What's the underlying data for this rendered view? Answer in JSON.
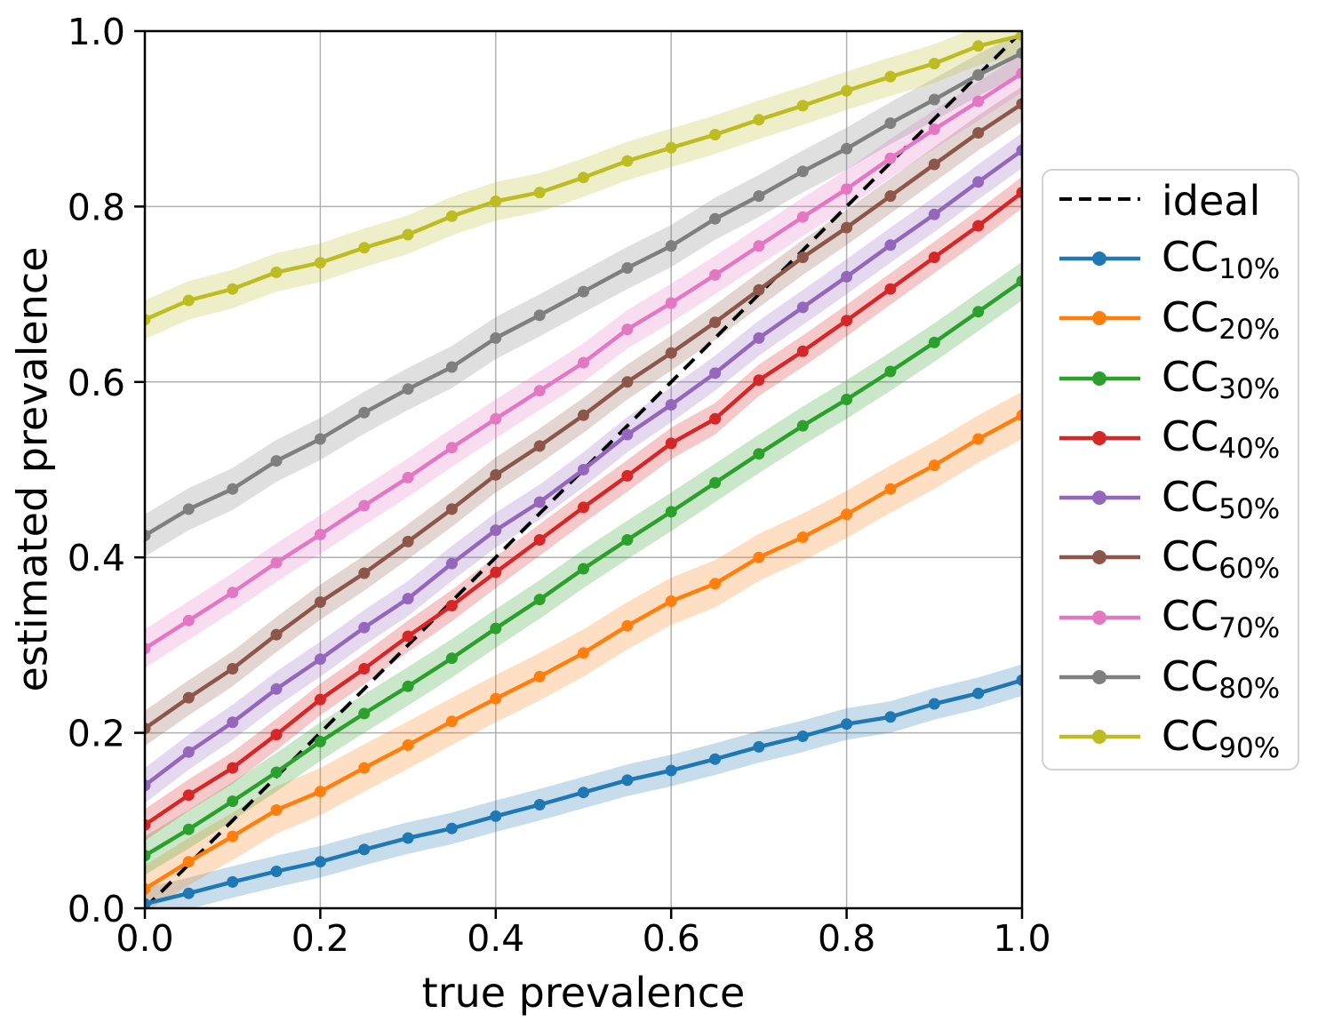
{
  "chart_data": {
    "type": "line",
    "title": "",
    "xlabel": "true prevalence",
    "ylabel": "estimated prevalence",
    "xlim": [
      0.0,
      1.0
    ],
    "ylim": [
      0.0,
      1.0
    ],
    "xticks": [
      "0.0",
      "0.2",
      "0.4",
      "0.6",
      "0.8",
      "1.0"
    ],
    "yticks": [
      "0.0",
      "0.2",
      "0.4",
      "0.6",
      "0.8",
      "1.0"
    ],
    "grid": true,
    "legend_position": "outside-right",
    "x": [
      0.0,
      0.05,
      0.1,
      0.15,
      0.2,
      0.25,
      0.3,
      0.35,
      0.4,
      0.45,
      0.5,
      0.55,
      0.6,
      0.65,
      0.7,
      0.75,
      0.8,
      0.85,
      0.9,
      0.95,
      1.0
    ],
    "ideal": {
      "label": "ideal",
      "x": [
        0.0,
        1.0
      ],
      "y": [
        0.0,
        1.0
      ],
      "color": "#000000",
      "linestyle": "dashed"
    },
    "series": [
      {
        "name": "CC",
        "subscript": "10%",
        "color": "#1f77b4",
        "band_halfwidth": 0.018,
        "values": [
          0.005,
          0.017,
          0.03,
          0.042,
          0.053,
          0.067,
          0.08,
          0.091,
          0.105,
          0.118,
          0.132,
          0.146,
          0.157,
          0.17,
          0.184,
          0.196,
          0.21,
          0.218,
          0.233,
          0.245,
          0.26
        ]
      },
      {
        "name": "CC",
        "subscript": "20%",
        "color": "#ff7f0e",
        "band_halfwidth": 0.027,
        "values": [
          0.022,
          0.053,
          0.082,
          0.112,
          0.133,
          0.16,
          0.186,
          0.213,
          0.239,
          0.264,
          0.291,
          0.322,
          0.35,
          0.37,
          0.4,
          0.423,
          0.449,
          0.478,
          0.505,
          0.535,
          0.562
        ]
      },
      {
        "name": "CC",
        "subscript": "30%",
        "color": "#2ca02c",
        "band_halfwidth": 0.022,
        "values": [
          0.06,
          0.09,
          0.122,
          0.155,
          0.19,
          0.222,
          0.253,
          0.285,
          0.319,
          0.352,
          0.387,
          0.42,
          0.452,
          0.485,
          0.518,
          0.55,
          0.58,
          0.612,
          0.645,
          0.68,
          0.715
        ]
      },
      {
        "name": "CC",
        "subscript": "40%",
        "color": "#d62728",
        "band_halfwidth": 0.018,
        "values": [
          0.095,
          0.129,
          0.16,
          0.198,
          0.238,
          0.273,
          0.31,
          0.345,
          0.383,
          0.42,
          0.457,
          0.493,
          0.53,
          0.558,
          0.602,
          0.635,
          0.67,
          0.706,
          0.742,
          0.778,
          0.816
        ]
      },
      {
        "name": "CC",
        "subscript": "50%",
        "color": "#9467bd",
        "band_halfwidth": 0.02,
        "values": [
          0.14,
          0.178,
          0.212,
          0.25,
          0.284,
          0.32,
          0.353,
          0.393,
          0.431,
          0.463,
          0.5,
          0.54,
          0.574,
          0.61,
          0.65,
          0.685,
          0.72,
          0.756,
          0.791,
          0.828,
          0.864
        ]
      },
      {
        "name": "CC",
        "subscript": "60%",
        "color": "#8c564b",
        "band_halfwidth": 0.02,
        "values": [
          0.205,
          0.24,
          0.273,
          0.312,
          0.349,
          0.382,
          0.418,
          0.455,
          0.494,
          0.527,
          0.562,
          0.6,
          0.633,
          0.668,
          0.705,
          0.742,
          0.776,
          0.812,
          0.848,
          0.884,
          0.917
        ]
      },
      {
        "name": "CC",
        "subscript": "70%",
        "color": "#e377c2",
        "band_halfwidth": 0.022,
        "values": [
          0.296,
          0.328,
          0.36,
          0.394,
          0.426,
          0.459,
          0.491,
          0.525,
          0.558,
          0.59,
          0.622,
          0.66,
          0.69,
          0.722,
          0.755,
          0.788,
          0.82,
          0.855,
          0.888,
          0.92,
          0.952
        ]
      },
      {
        "name": "CC",
        "subscript": "80%",
        "color": "#7f7f7f",
        "band_halfwidth": 0.024,
        "values": [
          0.425,
          0.455,
          0.478,
          0.51,
          0.535,
          0.565,
          0.592,
          0.617,
          0.65,
          0.676,
          0.703,
          0.73,
          0.755,
          0.786,
          0.812,
          0.84,
          0.866,
          0.895,
          0.922,
          0.95,
          0.975
        ]
      },
      {
        "name": "CC",
        "subscript": "90%",
        "color": "#bcbd22",
        "band_halfwidth": 0.022,
        "values": [
          0.671,
          0.693,
          0.706,
          0.725,
          0.736,
          0.753,
          0.768,
          0.789,
          0.806,
          0.816,
          0.833,
          0.852,
          0.867,
          0.882,
          0.899,
          0.915,
          0.932,
          0.948,
          0.963,
          0.983,
          0.995
        ]
      }
    ]
  },
  "style_colors": {
    "grid": "#b0b0b0",
    "spine": "#000000",
    "band_opacity": "0.25",
    "legend_border": "#d2d2d2",
    "background": "#ffffff"
  }
}
